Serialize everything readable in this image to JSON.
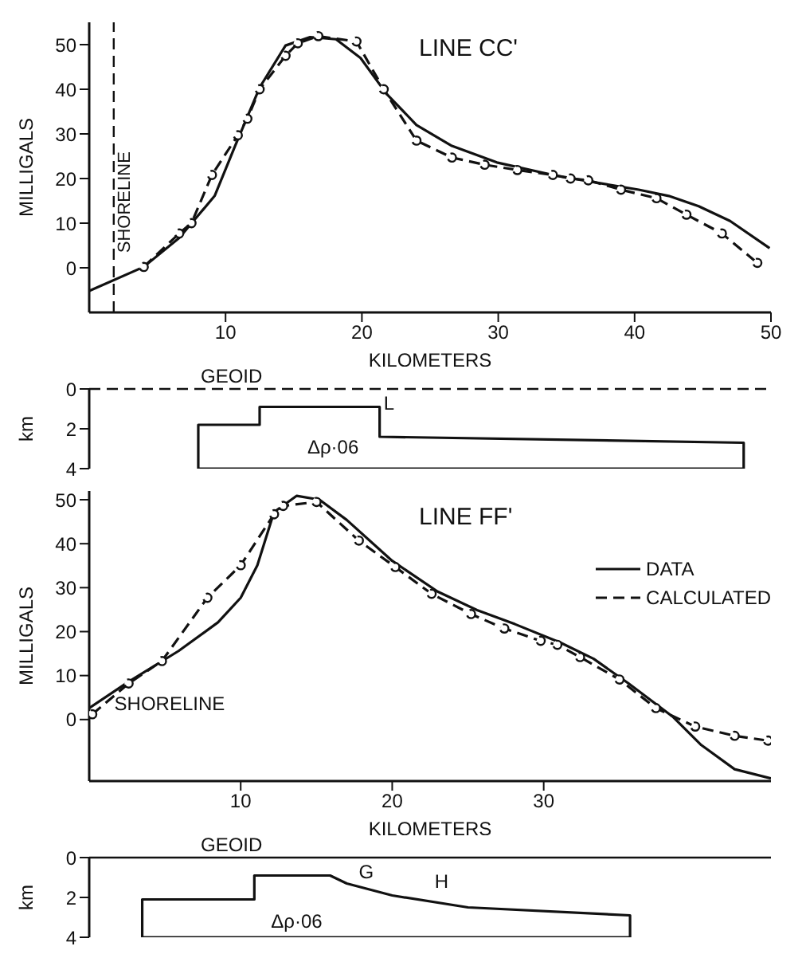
{
  "chart_data": [
    {
      "type": "line",
      "title": "LINE CC'",
      "xlabel": "KILOMETERS",
      "ylabel": "MILLIGALS",
      "xlim": [
        0,
        50
      ],
      "ylim": [
        -10,
        55
      ],
      "xticks": [
        10,
        20,
        30,
        40,
        50
      ],
      "yticks": [
        0,
        10,
        20,
        30,
        40,
        50
      ],
      "series": [
        {
          "color": "#111111",
          "line_style": "solid",
          "marker": "none",
          "x": [
            0,
            4,
            6.6,
            9.2,
            10.7,
            12.5,
            14.4,
            16.2,
            18.1,
            19.9,
            21.8,
            24,
            26.6,
            29.9,
            34,
            36.6,
            40.3,
            42.5,
            44.7,
            47,
            49.9
          ],
          "values": [
            -5.2,
            0.2,
            6.7,
            16.1,
            27.3,
            40.4,
            49.8,
            51.7,
            51.2,
            47,
            39,
            32,
            27.3,
            23.6,
            20.8,
            19.4,
            17.5,
            16.1,
            13.8,
            10.5,
            4.4
          ]
        },
        {
          "color": "#111111",
          "line_style": "dashed",
          "marker": "circle",
          "x": [
            4,
            6.6,
            7.5,
            9,
            10.9,
            11.6,
            12.5,
            14.4,
            15.3,
            16.8,
            19.6,
            21.6,
            24,
            26.6,
            29,
            31.4,
            34,
            35.3,
            36.6,
            39,
            41.6,
            43.8,
            46.4,
            49
          ],
          "values": [
            0.2,
            7.7,
            10,
            20.8,
            29.7,
            33.4,
            40,
            47.5,
            50.3,
            51.9,
            50.7,
            40,
            28.5,
            24.7,
            23.1,
            21.9,
            20.8,
            20,
            19.6,
            17.5,
            15.6,
            11.9,
            7.7,
            1.1
          ]
        }
      ],
      "ref_lines": [
        {
          "axis": "x",
          "value": 1.8,
          "label": "SHORELINE",
          "line_style": "dashed",
          "color": "#111111"
        }
      ]
    },
    {
      "type": "line",
      "ylabel": "km",
      "xlim": [
        0,
        50
      ],
      "ylim": [
        4,
        0
      ],
      "yticks": [
        0,
        2,
        4
      ],
      "tick_labels": "y",
      "series": [
        {
          "color": "#111111",
          "line_style": "solid",
          "marker": "none",
          "x": [
            8,
            8,
            12.5,
            12.5,
            21.3,
            21.3,
            48,
            48
          ],
          "values": [
            4,
            1.8,
            1.8,
            0.9,
            0.9,
            2.4,
            2.7,
            4
          ]
        },
        {
          "color": "#111111",
          "line_style": "solid",
          "marker": "none",
          "x": [
            8,
            48
          ],
          "values": [
            4,
            4
          ]
        }
      ],
      "ref_lines": [
        {
          "axis": "y",
          "value": 0,
          "label": "GEOID",
          "line_style": "dashed",
          "color": "#111111"
        }
      ],
      "annotations": [
        "Δρ·06",
        "L"
      ]
    },
    {
      "type": "line",
      "title": "LINE FF'",
      "xlabel": "KILOMETERS",
      "ylabel": "MILLIGALS",
      "xlim": [
        0,
        45
      ],
      "ylim": [
        -14,
        52
      ],
      "xticks": [
        10,
        20,
        30
      ],
      "yticks": [
        0,
        10,
        20,
        30,
        40,
        50
      ],
      "legend": "right",
      "series": [
        {
          "name": "DATA",
          "color": "#111111",
          "line_style": "solid",
          "marker": "none",
          "x": [
            0,
            2.6,
            5.9,
            8.5,
            10,
            11.1,
            12.2,
            13.7,
            15.2,
            17,
            20,
            23,
            25.6,
            28.1,
            31.1,
            33.3,
            35.6,
            38.5,
            40.4,
            42.6,
            45
          ],
          "values": [
            2.6,
            8.6,
            15.6,
            22.1,
            27.7,
            35.1,
            47.2,
            50.9,
            50,
            45.4,
            36.1,
            29.1,
            24.9,
            21.7,
            17.5,
            13.8,
            8.2,
            0.7,
            -5.8,
            -11.3,
            -13.4
          ]
        },
        {
          "name": "CALCULATED",
          "color": "#111111",
          "line_style": "dashed",
          "marker": "circle",
          "x": [
            0.2,
            2.6,
            4.8,
            7.8,
            10,
            12.2,
            12.8,
            15,
            17.8,
            20.2,
            22.6,
            25.2,
            27.4,
            29.8,
            30.9,
            32.4,
            35,
            37.4,
            40,
            42.6,
            44.8
          ],
          "values": [
            1.2,
            8.2,
            13.3,
            27.7,
            35.1,
            46.7,
            48.6,
            49.5,
            40.7,
            34.7,
            28.6,
            24,
            20.7,
            17.9,
            17,
            14.2,
            9.1,
            2.6,
            -1.6,
            -3.7,
            -4.8
          ]
        }
      ],
      "annotations": [
        {
          "text": "SHORELINE",
          "x": 0.4,
          "y": 1.5
        }
      ]
    },
    {
      "type": "line",
      "ylabel": "km",
      "xlim": [
        0,
        45
      ],
      "ylim": [
        4,
        0
      ],
      "yticks": [
        0,
        2,
        4
      ],
      "tick_labels": "y",
      "series": [
        {
          "color": "#111111",
          "line_style": "solid",
          "marker": "none",
          "x": [
            3.5,
            3.5,
            10.9,
            10.9,
            15.9,
            17,
            20,
            25,
            35.7,
            35.7
          ],
          "values": [
            4,
            2.1,
            2.1,
            0.9,
            0.9,
            1.3,
            1.9,
            2.5,
            2.9,
            4
          ]
        },
        {
          "color": "#111111",
          "line_style": "solid",
          "marker": "none",
          "x": [
            3.5,
            35.7
          ],
          "values": [
            4,
            4
          ]
        }
      ],
      "ref_lines": [
        {
          "axis": "y",
          "value": 0,
          "label": "GEOID",
          "line_style": "solid",
          "color": "#111111"
        }
      ],
      "annotations": [
        "Δρ·06",
        "G",
        "H"
      ]
    }
  ]
}
